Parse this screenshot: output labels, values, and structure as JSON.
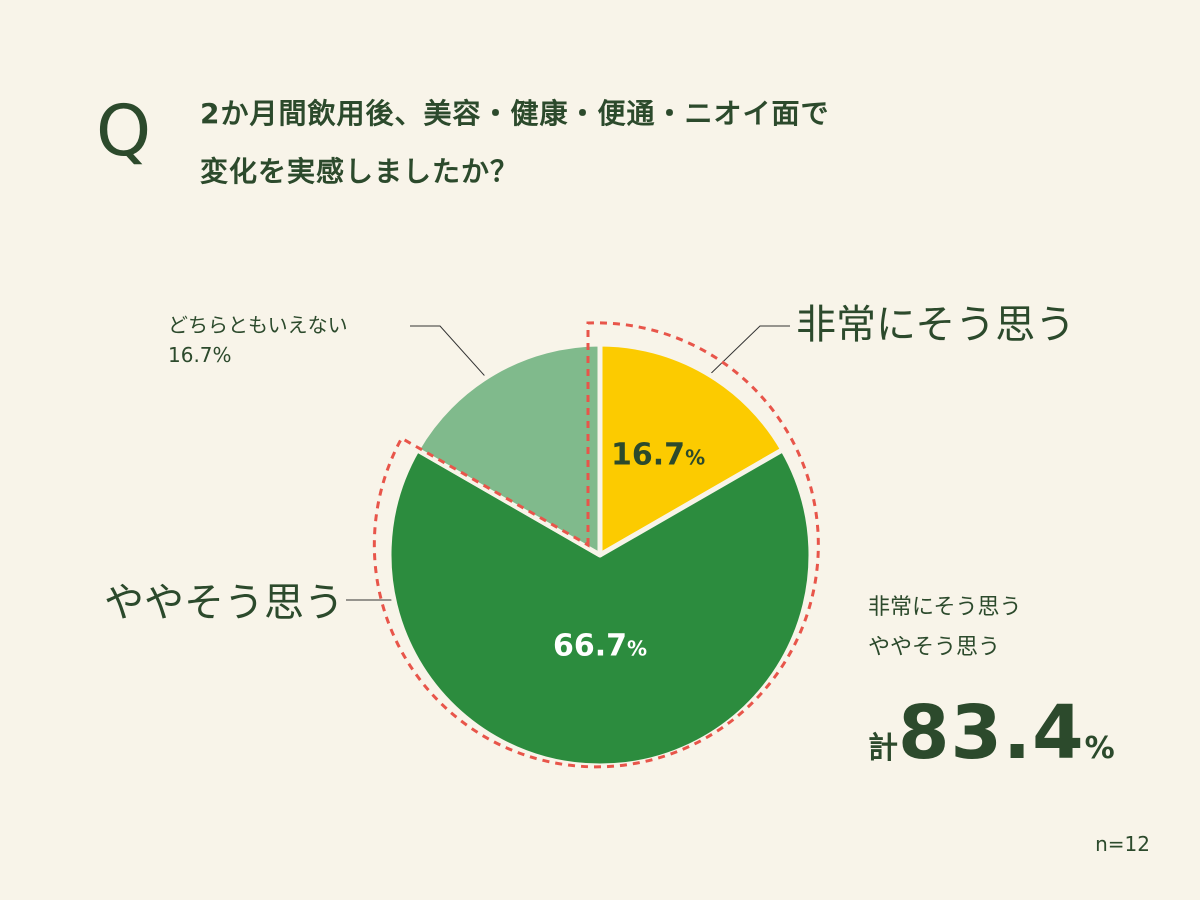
{
  "question": {
    "marker": "Q",
    "line1": "2か月間飲用後、美容・健康・便通・ニオイ面で",
    "line2": "変化を実感しましたか？"
  },
  "labels": {
    "neutral_name": "どちらともいえない",
    "neutral_value": "16.7%",
    "strong": "非常にそう思う",
    "some": "ややそう思う"
  },
  "total": {
    "line1": "非常にそう思う",
    "line2": "ややそう思う",
    "prefix": "計",
    "value": "83.4",
    "unit": "%"
  },
  "sample_note": "n=12",
  "chart_data": {
    "type": "pie",
    "slices": [
      {
        "label": "非常にそう思う",
        "value": 16.7,
        "display_number": "16.7",
        "display_unit": "%",
        "color": "#fccb00",
        "text_color": "#2c4a2c"
      },
      {
        "label": "ややそう思う",
        "value": 66.7,
        "display_number": "66.7",
        "display_unit": "%",
        "color": "#2c8c3e",
        "text_color": "#ffffff"
      },
      {
        "label": "どちらともいえない",
        "value": 16.7,
        "display_number": "",
        "display_unit": "",
        "color": "#80ba8c",
        "text_color": "#2c4a2c"
      }
    ],
    "highlight": {
      "slices": [
        "非常にそう思う",
        "ややそう思う"
      ],
      "total": 83.4,
      "style": "dashed",
      "color": "#e8554a"
    }
  }
}
